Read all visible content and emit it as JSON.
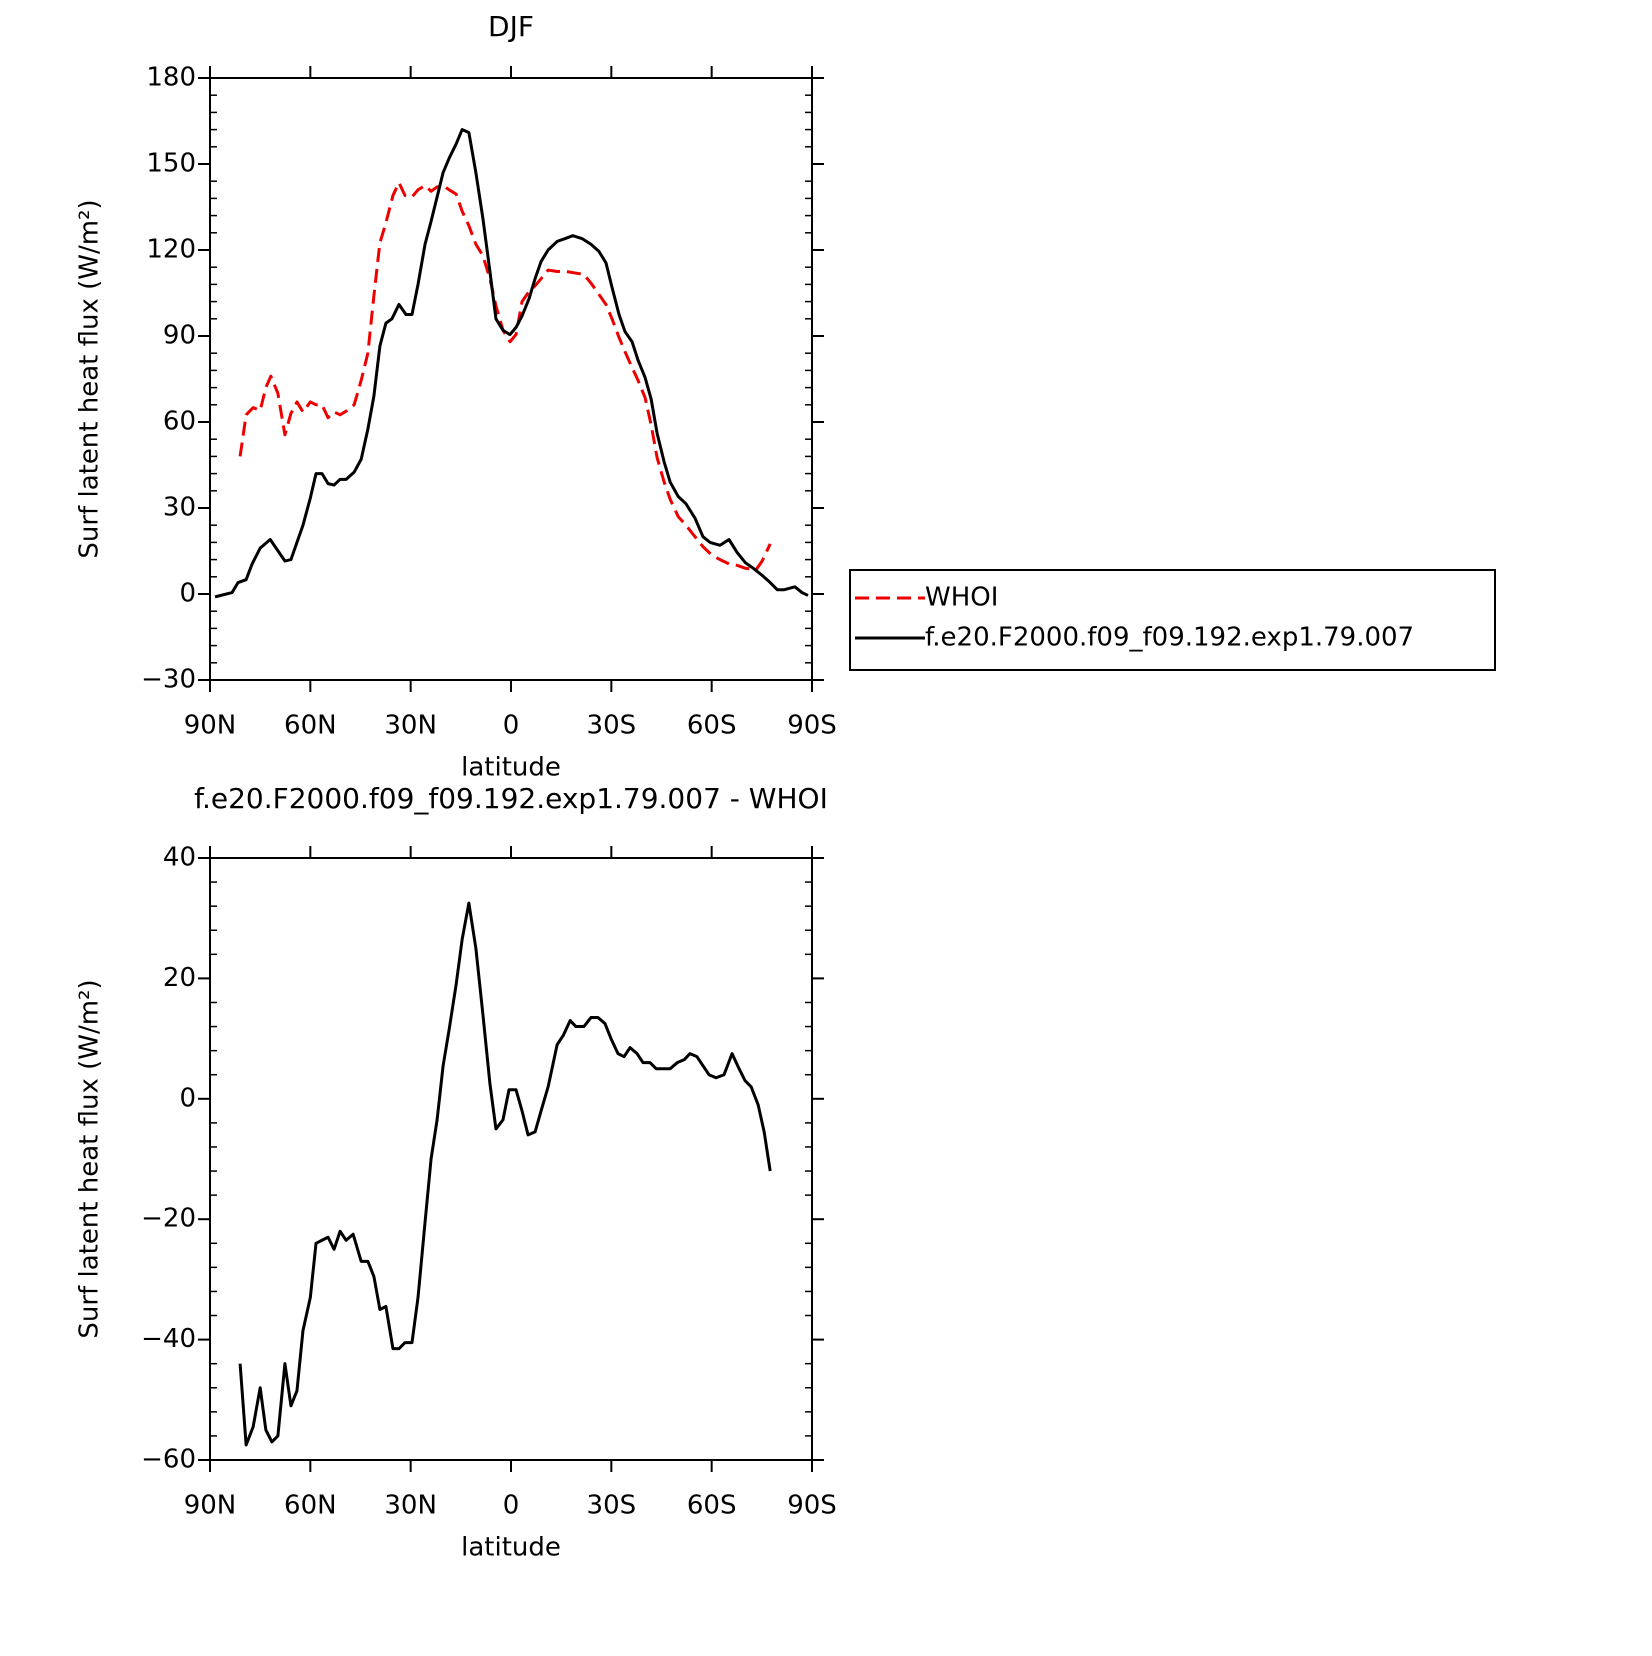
{
  "chart_data": [
    {
      "type": "line",
      "title": "DJF",
      "xlabel": "latitude",
      "ylabel": "Surf latent heat flux (W/m²)",
      "xlim": [
        90,
        -90
      ],
      "xticks": [
        {
          "value": 90,
          "label": "90N"
        },
        {
          "value": 60,
          "label": "60N"
        },
        {
          "value": 30,
          "label": "30N"
        },
        0,
        {
          "value": -30,
          "label": "30S"
        },
        {
          "value": -60,
          "label": "60S"
        },
        {
          "value": -90,
          "label": "90S"
        }
      ],
      "ylim": [
        -30,
        180
      ],
      "yticks": [
        {
          "value": -30,
          "label": "−30"
        },
        0,
        30,
        60,
        90,
        120,
        150,
        180
      ],
      "legend": "right",
      "series": [
        {
          "name": "WHOI",
          "color": "#ee0000",
          "linestyle": "dashed",
          "x": [
            81,
            79.2,
            77.1,
            75,
            73.3,
            71.8,
            69.7,
            67.6,
            65.8,
            64,
            62.2,
            60,
            58.3,
            56.5,
            54.7,
            52.9,
            51.1,
            49,
            46.9,
            44.8,
            42.8,
            41,
            39.2,
            37.4,
            35.3,
            33.5,
            31.7,
            29.6,
            27.8,
            25.7,
            23.9,
            22.1,
            20.3,
            18.5,
            16.4,
            14.6,
            12.6,
            10.5,
            8.4,
            6.3,
            4.5,
            2.4,
            0.3,
            -1.5,
            -3.3,
            -5.4,
            -7.2,
            -9,
            -11.1,
            -13.8,
            -16.5,
            -19.1,
            -21.8,
            -24.2,
            -26.3,
            -28.4,
            -30.2,
            -32.3,
            -34.1,
            -36.2,
            -38,
            -40.1,
            -41.9,
            -43.7,
            -45.8,
            -47.6,
            -50,
            -52.3,
            -55,
            -57.4,
            -60.1,
            -62.5,
            -65.2,
            -67.6,
            -70,
            -73.3,
            -75.1,
            -77.5
          ],
          "values": [
            48,
            62.5,
            65,
            64,
            72,
            76,
            70,
            55.5,
            63,
            67,
            63.5,
            67,
            66,
            66,
            61.5,
            63.5,
            62.5,
            64,
            66,
            74.5,
            84,
            104,
            122.5,
            129.5,
            139,
            143.5,
            139,
            138.5,
            141,
            142.5,
            140.5,
            142,
            142.5,
            141,
            139.5,
            133.5,
            128.5,
            122,
            118,
            110,
            100.5,
            92,
            88,
            90.5,
            102,
            105.5,
            107.5,
            110,
            113,
            112.5,
            112.5,
            112,
            111.5,
            108,
            104.5,
            101,
            96,
            89.5,
            84.5,
            79,
            74.5,
            68.5,
            59,
            47.5,
            39,
            33,
            27,
            24,
            20,
            16.5,
            13.5,
            12,
            10.5,
            10,
            9,
            8.5,
            11.5,
            17.5
          ]
        },
        {
          "name": "f.e20.F2000.f09_f09.192.exp1.79.007",
          "color": "#000000",
          "linestyle": "solid",
          "x": [
            88.5,
            83.4,
            81.6,
            79.2,
            77.4,
            75,
            72,
            67.6,
            65.8,
            64,
            62.2,
            60,
            58.3,
            56.5,
            54.7,
            52.9,
            51.1,
            49.3,
            46.9,
            44.8,
            42.8,
            41,
            39.2,
            37.4,
            35.6,
            33.5,
            31.4,
            29.6,
            27.8,
            25.7,
            23.9,
            22.1,
            20.3,
            18.5,
            16.4,
            14.6,
            12.6,
            10.5,
            8.4,
            6.3,
            4.5,
            2.4,
            0.3,
            -1.5,
            -3.3,
            -5.4,
            -7.2,
            -9,
            -11.1,
            -13.8,
            -16.2,
            -18.5,
            -21.2,
            -23.9,
            -26.3,
            -28.4,
            -30.2,
            -32.3,
            -34.1,
            -36.2,
            -38,
            -40.1,
            -41.9,
            -43.7,
            -45.8,
            -47.6,
            -50,
            -52.3,
            -55,
            -57.4,
            -59.5,
            -62.5,
            -65.2,
            -67.6,
            -70,
            -72.4,
            -75.1,
            -77.5,
            -79.6,
            -81.7,
            -84.9,
            -87,
            -88.8
          ],
          "values": [
            -1,
            0.5,
            4,
            5,
            10.5,
            16,
            19,
            11.5,
            12,
            18,
            24,
            33.5,
            42,
            42,
            38.5,
            38,
            40,
            40,
            42.5,
            47,
            57.5,
            69,
            86.5,
            94.5,
            96,
            101,
            97.5,
            97.5,
            108,
            122,
            130,
            138.5,
            147,
            152,
            157,
            162,
            161,
            147,
            131,
            112.5,
            96,
            92,
            90.5,
            93,
            97,
            103,
            110,
            116,
            120,
            123,
            124,
            125,
            124,
            122,
            119.5,
            115.5,
            107,
            97.5,
            91.5,
            88,
            81.5,
            75.5,
            68,
            56,
            46,
            39,
            34,
            31.5,
            26.5,
            20,
            18,
            17,
            19,
            14.5,
            11,
            9,
            6.5,
            4,
            1.5,
            1.5,
            2.5,
            0.5,
            -0.5
          ]
        }
      ]
    },
    {
      "type": "line",
      "title": "f.e20.F2000.f09_f09.192.exp1.79.007 - WHOI",
      "xlabel": "latitude",
      "ylabel": "Surf latent heat flux (W/m²)",
      "xlim": [
        90,
        -90
      ],
      "xticks": [
        {
          "value": 90,
          "label": "90N"
        },
        {
          "value": 60,
          "label": "60N"
        },
        {
          "value": 30,
          "label": "30N"
        },
        0,
        {
          "value": -30,
          "label": "30S"
        },
        {
          "value": -60,
          "label": "60S"
        },
        {
          "value": -90,
          "label": "90S"
        }
      ],
      "ylim": [
        -60,
        40
      ],
      "yticks": [
        {
          "value": -60,
          "label": "−60"
        },
        {
          "value": -40,
          "label": "−40"
        },
        {
          "value": -20,
          "label": "−20"
        },
        0,
        20,
        40
      ],
      "series": [
        {
          "color": "#000000",
          "linestyle": "solid",
          "x": [
            81,
            79.2,
            77.1,
            75,
            73.3,
            71.5,
            69.7,
            67.6,
            65.8,
            64,
            62.2,
            60,
            58.3,
            56.5,
            54.7,
            52.9,
            51.1,
            49.3,
            47.2,
            44.8,
            42.8,
            41,
            39.2,
            37.4,
            35.3,
            33.5,
            31.7,
            29.6,
            27.8,
            25.7,
            23.9,
            22.1,
            20.3,
            18.5,
            16.4,
            14.6,
            12.6,
            10.5,
            8.4,
            6.3,
            4.5,
            2.4,
            0.6,
            -1.5,
            -3.3,
            -5.1,
            -7.2,
            -9,
            -11.1,
            -13.8,
            -15.6,
            -17.7,
            -19.4,
            -21.8,
            -23.9,
            -26,
            -28.1,
            -29.9,
            -32,
            -33.8,
            -35.6,
            -37.7,
            -39.5,
            -41.6,
            -43.4,
            -45.5,
            -47.6,
            -49.7,
            -51.8,
            -53.5,
            -55.6,
            -57.4,
            -59.2,
            -61.3,
            -63.7,
            -66.1,
            -68.2,
            -70,
            -71.8,
            -73.9,
            -75.7,
            -77.5
          ],
          "values": [
            -44,
            -57.5,
            -54.5,
            -48,
            -55,
            -57,
            -56,
            -44,
            -51,
            -48.5,
            -38.5,
            -33,
            -24,
            -23.5,
            -23,
            -25,
            -22,
            -23.5,
            -22.5,
            -27,
            -27,
            -29.5,
            -35,
            -34.5,
            -41.5,
            -41.5,
            -40.5,
            -40.5,
            -33,
            -20.5,
            -10,
            -3.5,
            5.5,
            11.5,
            19,
            26.5,
            32.5,
            25,
            14,
            2.5,
            -5,
            -3.5,
            1.5,
            1.5,
            -2,
            -6,
            -5.5,
            -2,
            2,
            9,
            10.5,
            13,
            12,
            12,
            13.5,
            13.5,
            12.5,
            10,
            7.5,
            7,
            8.5,
            7.5,
            6,
            6,
            5,
            5,
            5,
            6,
            6.5,
            7.5,
            7,
            5.5,
            4,
            3.5,
            4,
            7.5,
            5,
            3,
            2,
            -1,
            -5.5,
            -12
          ]
        }
      ]
    }
  ]
}
